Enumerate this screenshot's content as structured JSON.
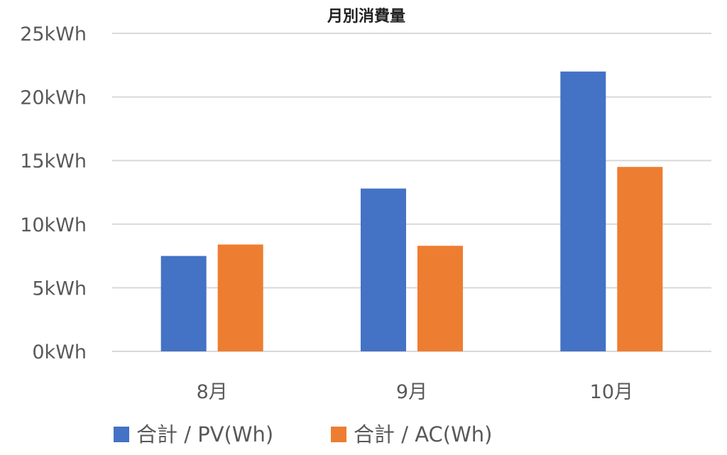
{
  "chart_data": {
    "type": "bar",
    "title": "月別消費量",
    "categories": [
      "8月",
      "9月",
      "10月"
    ],
    "series": [
      {
        "name": "合計 / PV(Wh)",
        "color": "#4472C4",
        "values": [
          7500,
          12800,
          22000
        ]
      },
      {
        "name": "合計 / AC(Wh)",
        "color": "#ED7D31",
        "values": [
          8400,
          8300,
          14500
        ]
      }
    ],
    "ylim": [
      0,
      25000
    ],
    "yticks": [
      0,
      5000,
      10000,
      15000,
      20000,
      25000
    ],
    "ytick_labels": [
      "0kWh",
      "5kWh",
      "10kWh",
      "15kWh",
      "20kWh",
      "25kWh"
    ],
    "grid": true,
    "legend_position": "bottom",
    "xlabel": "",
    "ylabel": ""
  }
}
